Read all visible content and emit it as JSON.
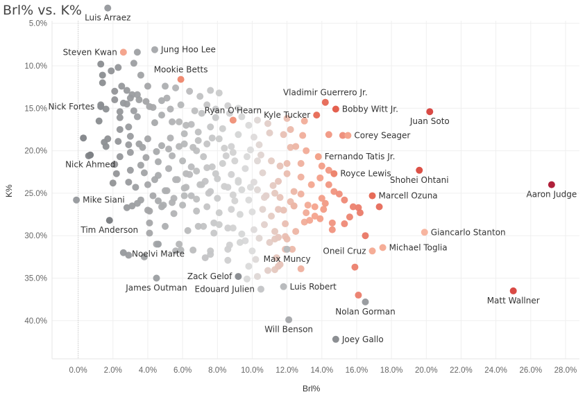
{
  "chart_data": {
    "type": "scatter",
    "title": "Brl% vs. K%",
    "xlabel": "Brl%",
    "ylabel": "K%",
    "xlim": [
      -1.5,
      28.8
    ],
    "ylim": [
      4.7,
      44.5
    ],
    "y_inverted": true,
    "grid": true,
    "x_ticks": [
      0,
      2,
      4,
      6,
      8,
      10,
      12,
      14,
      16,
      18,
      20,
      22,
      24,
      26,
      28
    ],
    "x_tick_labels": [
      "0.0%",
      "2.0%",
      "4.0%",
      "6.0%",
      "8.0%",
      "10.0%",
      "12.0%",
      "14.0%",
      "16.0%",
      "18.0%",
      "20.0%",
      "22.0%",
      "24.0%",
      "26.0%",
      "28.0%"
    ],
    "y_ticks": [
      5,
      10,
      15,
      20,
      25,
      30,
      35,
      40
    ],
    "y_tick_labels": [
      "5.0%",
      "10.0%",
      "15.0%",
      "20.0%",
      "25.0%",
      "30.0%",
      "35.0%",
      "40.0%"
    ],
    "color_scale": {
      "low": "#7e8185",
      "mid": "#dcdcdc",
      "high": "#b0203a"
    },
    "labeled_points": [
      {
        "name": "Luis Arraez",
        "x": 1.7,
        "y": 3.2,
        "color": "#9a9da1",
        "label_pos": "below"
      },
      {
        "name": "Steven Kwan",
        "x": 2.6,
        "y": 8.4,
        "color": "#f4a58e",
        "label_pos": "left"
      },
      {
        "name": "Jung Hoo Lee",
        "x": 4.4,
        "y": 8.1,
        "color": "#a9abae",
        "label_pos": "right"
      },
      {
        "name": "Mookie Betts",
        "x": 5.9,
        "y": 11.6,
        "color": "#ef8b72",
        "label_pos": "above"
      },
      {
        "name": "Nick Fortes",
        "x": 1.3,
        "y": 14.8,
        "color": "#8c8f93",
        "label_pos": "left"
      },
      {
        "name": "Ryan O'Hearn",
        "x": 8.9,
        "y": 16.4,
        "color": "#f0957d",
        "label_pos": "above"
      },
      {
        "name": "Vladimir Guerrero Jr.",
        "x": 14.2,
        "y": 14.3,
        "color": "#e76f5d",
        "label_pos": "above"
      },
      {
        "name": "Kyle Tucker",
        "x": 13.7,
        "y": 15.8,
        "color": "#e8705c",
        "label_pos": "left"
      },
      {
        "name": "Bobby Witt Jr.",
        "x": 14.8,
        "y": 15.1,
        "color": "#e4604f",
        "label_pos": "right"
      },
      {
        "name": "Juan Soto",
        "x": 20.2,
        "y": 15.4,
        "color": "#d94a45",
        "label_pos": "below"
      },
      {
        "name": "Corey Seager",
        "x": 15.5,
        "y": 18.2,
        "color": "#f4a58e",
        "label_pos": "right"
      },
      {
        "name": "Fernando Tatis Jr.",
        "x": 13.8,
        "y": 20.7,
        "color": "#f3a38b",
        "label_pos": "right"
      },
      {
        "name": "Nick Ahmed",
        "x": 0.7,
        "y": 20.5,
        "color": "#7e8185",
        "label_pos": "below"
      },
      {
        "name": "Royce Lewis",
        "x": 14.7,
        "y": 22.7,
        "color": "#ed856e",
        "label_pos": "right"
      },
      {
        "name": "Shohei Ohtani",
        "x": 19.6,
        "y": 22.3,
        "color": "#dc5147",
        "label_pos": "below"
      },
      {
        "name": "Mike Siani",
        "x": -0.1,
        "y": 25.8,
        "color": "#9a9da1",
        "label_pos": "right"
      },
      {
        "name": "Marcell Ozuna",
        "x": 16.9,
        "y": 25.3,
        "color": "#e66b58",
        "label_pos": "right"
      },
      {
        "name": "Aaron Judge",
        "x": 27.2,
        "y": 24.0,
        "color": "#b0203a",
        "label_pos": "below"
      },
      {
        "name": "Tim Anderson",
        "x": 1.8,
        "y": 28.2,
        "color": "#7e8185",
        "label_pos": "below"
      },
      {
        "name": "Giancarlo Stanton",
        "x": 19.9,
        "y": 29.6,
        "color": "#f7b5a0",
        "label_pos": "right"
      },
      {
        "name": "Noelvi Marte",
        "x": 4.6,
        "y": 31.0,
        "color": "#a0a3a6",
        "label_pos": "below"
      },
      {
        "name": "Oneil Cruz",
        "x": 16.9,
        "y": 31.8,
        "color": "#f5ad97",
        "label_pos": "left"
      },
      {
        "name": "Michael Toglia",
        "x": 17.5,
        "y": 31.4,
        "color": "#f5ad97",
        "label_pos": "right"
      },
      {
        "name": "Max Muncy",
        "x": 12.0,
        "y": 31.6,
        "color": "#b9bbbd",
        "label_pos": "below"
      },
      {
        "name": "Zack Gelof",
        "x": 9.2,
        "y": 34.8,
        "color": "#8c8f93",
        "label_pos": "left"
      },
      {
        "name": "James Outman",
        "x": 4.5,
        "y": 35.0,
        "color": "#a0a3a6",
        "label_pos": "below"
      },
      {
        "name": "Edouard Julien",
        "x": 10.5,
        "y": 36.3,
        "color": "#c6c7c9",
        "label_pos": "left"
      },
      {
        "name": "Luis Robert",
        "x": 11.8,
        "y": 36.0,
        "color": "#b9bbbd",
        "label_pos": "right"
      },
      {
        "name": "Matt Wallner",
        "x": 25.0,
        "y": 36.5,
        "color": "#d94a45",
        "label_pos": "below"
      },
      {
        "name": "Nolan Gorman",
        "x": 16.5,
        "y": 37.8,
        "color": "#9a9da1",
        "label_pos": "below"
      },
      {
        "name": "Will Benson",
        "x": 12.1,
        "y": 39.9,
        "color": "#a9abae",
        "label_pos": "below"
      },
      {
        "name": "Joey Gallo",
        "x": 14.8,
        "y": 42.2,
        "color": "#8c8f93",
        "label_pos": "right"
      }
    ],
    "other_points": [
      [
        1.3,
        9.8
      ],
      [
        1.4,
        11.1
      ],
      [
        1.4,
        12.0
      ],
      [
        1.9,
        10.6
      ],
      [
        2.3,
        10.2
      ],
      [
        3.2,
        9.7
      ],
      [
        3.4,
        8.4
      ],
      [
        2.1,
        13.0
      ],
      [
        2.5,
        12.4
      ],
      [
        2.8,
        12.9
      ],
      [
        3.1,
        13.4
      ],
      [
        3.5,
        14.0
      ],
      [
        1.6,
        15.1
      ],
      [
        2.6,
        14.4
      ],
      [
        3.2,
        15.3
      ],
      [
        1.2,
        16.5
      ],
      [
        2.4,
        16.1
      ],
      [
        2.9,
        17.2
      ],
      [
        3.4,
        16.0
      ],
      [
        4.1,
        14.8
      ],
      [
        4.4,
        16.7
      ],
      [
        4.8,
        14.1
      ],
      [
        5.3,
        15.1
      ],
      [
        5.8,
        16.6
      ],
      [
        5.0,
        12.4
      ],
      [
        5.6,
        12.6
      ],
      [
        6.4,
        13.0
      ],
      [
        7.0,
        13.6
      ],
      [
        7.6,
        12.9
      ],
      [
        8.1,
        13.2
      ],
      [
        7.4,
        14.6
      ],
      [
        7.1,
        15.6
      ],
      [
        6.5,
        16.9
      ],
      [
        7.9,
        15.1
      ],
      [
        8.6,
        14.7
      ],
      [
        9.2,
        15.0
      ],
      [
        6.1,
        18.0
      ],
      [
        5.3,
        18.5
      ],
      [
        4.8,
        19.4
      ],
      [
        4.0,
        18.6
      ],
      [
        3.5,
        19.2
      ],
      [
        3.0,
        18.3
      ],
      [
        2.3,
        18.9
      ],
      [
        1.5,
        19.0
      ],
      [
        1.6,
        19.5
      ],
      [
        2.4,
        20.7
      ],
      [
        3.0,
        20.2
      ],
      [
        3.9,
        20.8
      ],
      [
        4.6,
        21.3
      ],
      [
        5.4,
        20.6
      ],
      [
        6.0,
        21.2
      ],
      [
        6.8,
        20.0
      ],
      [
        7.4,
        19.2
      ],
      [
        8.1,
        18.6
      ],
      [
        8.8,
        19.5
      ],
      [
        9.2,
        18.1
      ],
      [
        9.9,
        19.9
      ],
      [
        10.4,
        19.3
      ],
      [
        3.0,
        22.3
      ],
      [
        3.6,
        21.7
      ],
      [
        3.8,
        22.6
      ],
      [
        4.6,
        22.9
      ],
      [
        5.2,
        22.1
      ],
      [
        5.7,
        23.4
      ],
      [
        6.2,
        22.7
      ],
      [
        6.8,
        22.4
      ],
      [
        7.3,
        23.6
      ],
      [
        7.9,
        22.7
      ],
      [
        8.3,
        21.5
      ],
      [
        8.8,
        22.8
      ],
      [
        9.2,
        23.5
      ],
      [
        9.6,
        22.1
      ],
      [
        10.1,
        23.7
      ],
      [
        10.6,
        22.6
      ],
      [
        4.0,
        24.0
      ],
      [
        4.3,
        25.3
      ],
      [
        5.0,
        24.7
      ],
      [
        5.5,
        25.6
      ],
      [
        6.1,
        24.4
      ],
      [
        6.5,
        25.3
      ],
      [
        7.0,
        24.0
      ],
      [
        7.6,
        24.8
      ],
      [
        8.0,
        25.6
      ],
      [
        8.4,
        24.2
      ],
      [
        8.9,
        25.2
      ],
      [
        9.4,
        24.6
      ],
      [
        9.8,
        25.8
      ],
      [
        10.3,
        24.6
      ],
      [
        10.8,
        25.3
      ],
      [
        11.2,
        24.1
      ],
      [
        11.6,
        25.5
      ],
      [
        12.2,
        26.0
      ],
      [
        2.8,
        26.7
      ],
      [
        3.4,
        26.2
      ],
      [
        4.1,
        27.1
      ],
      [
        4.8,
        26.6
      ],
      [
        5.5,
        27.4
      ],
      [
        6.0,
        26.4
      ],
      [
        6.8,
        27.1
      ],
      [
        7.4,
        26.6
      ],
      [
        8.1,
        27.3
      ],
      [
        8.8,
        26.9
      ],
      [
        9.3,
        27.5
      ],
      [
        10.0,
        27.2
      ],
      [
        10.6,
        26.9
      ],
      [
        11.1,
        27.7
      ],
      [
        11.8,
        27.0
      ],
      [
        12.4,
        26.5
      ],
      [
        4.1,
        28.5
      ],
      [
        5.0,
        28.9
      ],
      [
        6.3,
        29.4
      ],
      [
        7.2,
        28.9
      ],
      [
        7.8,
        28.5
      ],
      [
        8.6,
        29.1
      ],
      [
        9.4,
        29.8
      ],
      [
        10.1,
        29.3
      ],
      [
        10.7,
        28.7
      ],
      [
        11.3,
        29.5
      ],
      [
        11.9,
        30.1
      ],
      [
        12.5,
        29.5
      ],
      [
        4.1,
        29.7
      ],
      [
        5.6,
        31.8
      ],
      [
        6.6,
        31.7
      ],
      [
        7.6,
        32.2
      ],
      [
        8.6,
        31.6
      ],
      [
        9.6,
        30.6
      ],
      [
        10.4,
        30.3
      ],
      [
        11.0,
        30.8
      ],
      [
        11.5,
        30.2
      ],
      [
        12.0,
        30.4
      ],
      [
        11.4,
        32.6
      ],
      [
        11.6,
        33.4
      ],
      [
        10.2,
        32.8
      ],
      [
        9.8,
        33.6
      ],
      [
        8.6,
        32.9
      ],
      [
        7.6,
        31.8
      ],
      [
        4.5,
        31.0
      ],
      [
        5.9,
        31.7
      ],
      [
        6.9,
        28.9
      ],
      [
        13.0,
        28.4
      ],
      [
        13.9,
        28.0
      ],
      [
        14.6,
        28.5
      ],
      [
        15.3,
        28.6
      ],
      [
        16.1,
        26.7
      ],
      [
        16.5,
        30.0
      ],
      [
        14.6,
        29.3
      ],
      [
        11.9,
        28.6
      ],
      [
        13.2,
        26.4
      ],
      [
        12.8,
        25.1
      ],
      [
        13.4,
        24.0
      ],
      [
        14.0,
        25.6
      ],
      [
        14.4,
        24.0
      ],
      [
        14.7,
        24.8
      ],
      [
        15.0,
        25.1
      ],
      [
        15.8,
        26.6
      ],
      [
        16.2,
        27.3
      ],
      [
        17.3,
        26.6
      ],
      [
        15.6,
        27.8
      ],
      [
        13.6,
        26.6
      ],
      [
        11.3,
        25.0
      ],
      [
        11.5,
        23.6
      ],
      [
        12.0,
        22.7
      ],
      [
        12.8,
        23.1
      ],
      [
        13.9,
        23.2
      ],
      [
        14.4,
        22.3
      ],
      [
        12.0,
        21.5
      ],
      [
        11.1,
        21.2
      ],
      [
        10.5,
        20.5
      ],
      [
        11.0,
        17.9
      ],
      [
        11.8,
        18.1
      ],
      [
        12.9,
        18.2
      ],
      [
        12.2,
        19.6
      ],
      [
        13.1,
        20.0
      ],
      [
        14.4,
        18.1
      ],
      [
        15.2,
        18.2
      ],
      [
        9.8,
        17.0
      ],
      [
        9.4,
        16.0
      ],
      [
        8.7,
        15.6
      ],
      [
        10.1,
        18.4
      ],
      [
        9.0,
        21.2
      ],
      [
        8.5,
        20.6
      ],
      [
        7.2,
        20.7
      ],
      [
        6.6,
        19.6
      ],
      [
        5.8,
        19.5
      ],
      [
        6.5,
        21.9
      ],
      [
        7.7,
        21.9
      ],
      [
        9.9,
        24.3
      ],
      [
        9.2,
        23.7
      ],
      [
        10.7,
        25.5
      ],
      [
        11.5,
        26.9
      ],
      [
        12.4,
        26.5
      ],
      [
        13.6,
        27.7
      ],
      [
        14.2,
        26.2
      ],
      [
        15.3,
        25.8
      ],
      [
        11.9,
        31.6
      ],
      [
        12.3,
        31.6
      ],
      [
        11.3,
        30.4
      ],
      [
        10.0,
        31.8
      ],
      [
        9.3,
        30.8
      ],
      [
        8.7,
        31.1
      ],
      [
        8.1,
        28.7
      ],
      [
        7.8,
        29.7
      ],
      [
        8.9,
        29.1
      ],
      [
        7.1,
        24.0
      ],
      [
        6.2,
        24.3
      ],
      [
        5.1,
        24.7
      ],
      [
        4.6,
        25.9
      ],
      [
        3.6,
        25.8
      ],
      [
        3.1,
        26.5
      ],
      [
        2.9,
        23.7
      ],
      [
        2.2,
        22.7
      ],
      [
        2.1,
        21.6
      ],
      [
        2.0,
        23.8
      ],
      [
        3.3,
        24.3
      ],
      [
        4.4,
        23.4
      ],
      [
        5.6,
        23.4
      ],
      [
        6.4,
        22.8
      ],
      [
        7.4,
        22.0
      ],
      [
        8.0,
        23.3
      ],
      [
        8.6,
        24.3
      ],
      [
        9.0,
        25.9
      ],
      [
        7.5,
        25.0
      ],
      [
        6.8,
        25.7
      ],
      [
        6.1,
        25.3
      ],
      [
        5.4,
        26.1
      ],
      [
        4.9,
        26.4
      ],
      [
        4.0,
        27.0
      ],
      [
        2.4,
        15.4
      ],
      [
        2.1,
        14.0
      ],
      [
        2.8,
        14.5
      ],
      [
        3.4,
        13.4
      ],
      [
        3.9,
        14.2
      ],
      [
        4.3,
        14.9
      ],
      [
        4.8,
        15.8
      ],
      [
        5.4,
        16.6
      ],
      [
        6.2,
        17.0
      ],
      [
        6.9,
        17.8
      ],
      [
        7.6,
        17.2
      ],
      [
        8.3,
        17.4
      ],
      [
        7.9,
        16.1
      ],
      [
        6.7,
        15.3
      ],
      [
        5.9,
        14.6
      ],
      [
        5.1,
        13.8
      ],
      [
        4.0,
        12.4
      ],
      [
        3.0,
        13.8
      ],
      [
        2.4,
        17.5
      ],
      [
        1.7,
        18.6
      ],
      [
        2.9,
        19.3
      ],
      [
        3.7,
        19.6
      ],
      [
        4.5,
        20.1
      ],
      [
        5.2,
        19.8
      ],
      [
        6.1,
        19.2
      ],
      [
        6.9,
        18.8
      ],
      [
        7.7,
        18.5
      ],
      [
        8.4,
        19.7
      ],
      [
        8.9,
        20.2
      ],
      [
        9.7,
        20.7
      ],
      [
        10.3,
        21.2
      ],
      [
        11.6,
        21.8
      ],
      [
        12.8,
        21.5
      ],
      [
        1.3,
        14.6
      ],
      [
        0.3,
        18.5
      ],
      [
        0.6,
        20.6
      ],
      [
        2.9,
        32.3
      ],
      [
        2.6,
        32.0
      ],
      [
        3.8,
        32.5
      ],
      [
        5.8,
        31.0
      ],
      [
        7.3,
        32.6
      ],
      [
        9.7,
        35.1
      ],
      [
        10.3,
        34.8
      ],
      [
        10.9,
        34.1
      ],
      [
        11.3,
        34.0
      ],
      [
        11.5,
        33.6
      ],
      [
        12.8,
        33.9
      ],
      [
        15.9,
        33.7
      ],
      [
        16.1,
        37.0
      ],
      [
        13.3,
        28.2
      ],
      [
        13.1,
        27.3
      ],
      [
        14.1,
        26.9
      ],
      [
        12.4,
        24.8
      ],
      [
        14.0,
        21.8
      ],
      [
        12.5,
        19.5
      ],
      [
        12.2,
        17.5
      ],
      [
        13.0,
        16.5
      ],
      [
        12.0,
        16.2
      ],
      [
        10.9,
        16.8
      ],
      [
        10.3,
        16.4
      ],
      [
        3.6,
        11.1
      ]
    ]
  }
}
